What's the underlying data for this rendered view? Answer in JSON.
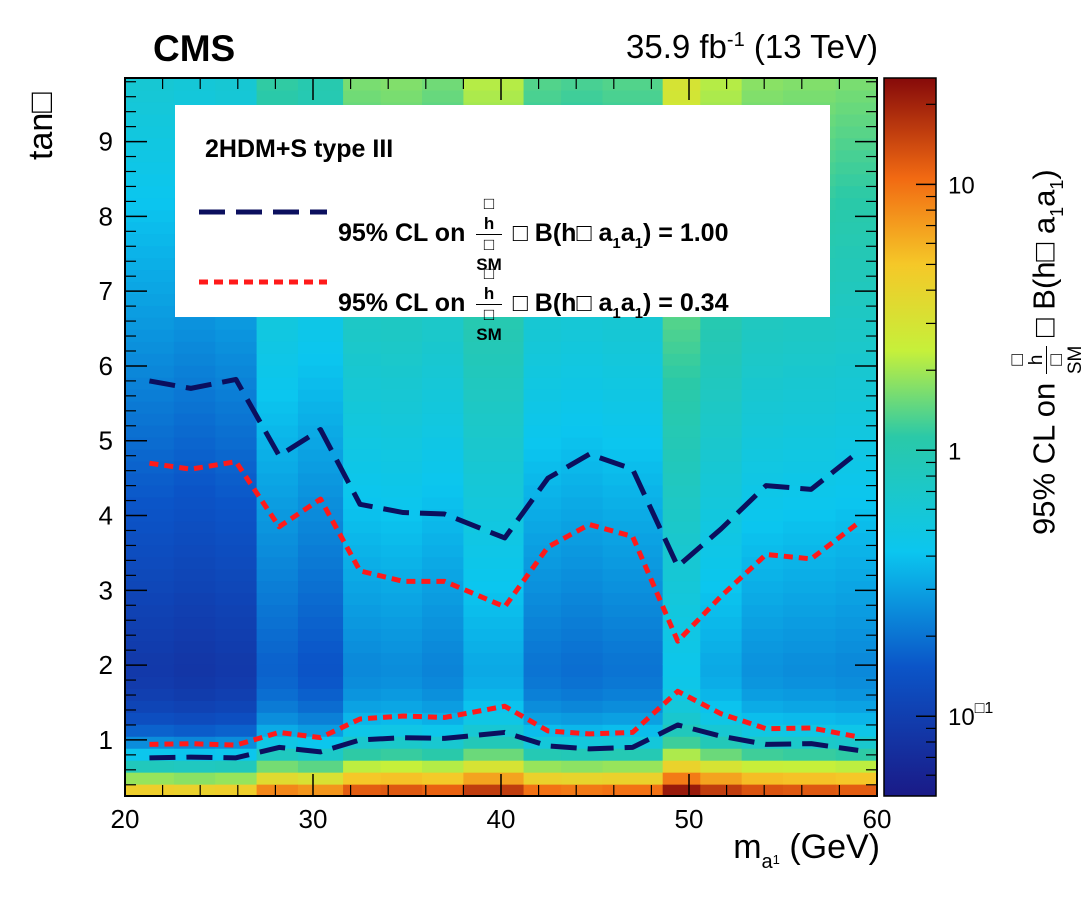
{
  "header": {
    "experiment": "CMS",
    "luminosity_value": "35.9 fb",
    "luminosity_exp": "-1",
    "energy": "(13 TeV)"
  },
  "legend": {
    "title": "2HDM+S type III",
    "entries": [
      {
        "prefix": "95% CL on",
        "frac_num": "□",
        "frac_num_sub": "h",
        "frac_den": "□",
        "frac_den_sub": "SM",
        "mid": "□ B(h□",
        "a": "a",
        "sub1": "1",
        "a2": "a",
        "sub2": "1",
        "suffix": ") = 1.00",
        "color": "#0b0f5e",
        "style": "dashed"
      },
      {
        "prefix": "95% CL on",
        "frac_num": "□",
        "frac_num_sub": "h",
        "frac_den": "□",
        "frac_den_sub": "SM",
        "mid": "□ B(h□",
        "a": "a",
        "sub1": "1",
        "a2": "a",
        "sub2": "1",
        "suffix": ") = 0.34",
        "color": "#ff1a1a",
        "style": "dotted"
      }
    ]
  },
  "axes": {
    "ylabel": "tan□",
    "xlabel_main": "m",
    "xlabel_sub": "a",
    "xlabel_subsub": "1",
    "xlabel_unit": " (GeV)",
    "zlabel_prefix": "95% CL on",
    "zlabel_num": "□",
    "zlabel_num_sub": "h",
    "zlabel_den": "□",
    "zlabel_den_sub": "SM",
    "zlabel_mid": " □ B(h□  a",
    "zlabel_sub1": "1",
    "zlabel_a2": "a",
    "zlabel_sub2": "1",
    "zlabel_suffix": ")"
  },
  "chart_data": {
    "type": "heatmap",
    "xlim": [
      20,
      60
    ],
    "ylim": [
      0.25,
      9.85
    ],
    "zlim_log10": [
      -1.3,
      1.4
    ],
    "x_ticks": [
      20,
      30,
      40,
      50,
      60
    ],
    "x_tick_labels": [
      "20",
      "30",
      "40",
      "50",
      "60"
    ],
    "y_ticks": [
      1,
      2,
      3,
      4,
      5,
      6,
      7,
      8,
      9
    ],
    "y_tick_labels": [
      "1",
      "2",
      "3",
      "4",
      "5",
      "6",
      "7",
      "8",
      "9"
    ],
    "z_tick_labels": [
      {
        "value": 0.1,
        "label": "10",
        "exp": "□1"
      },
      {
        "value": 1,
        "label": "1",
        "exp": ""
      },
      {
        "value": 10,
        "label": "10",
        "exp": ""
      }
    ],
    "columns": [
      {
        "x0": 20,
        "x1": 22.6,
        "min": 0.09
      },
      {
        "x0": 22.6,
        "x1": 24.8,
        "min": 0.085
      },
      {
        "x0": 24.8,
        "x1": 27.0,
        "min": 0.09
      },
      {
        "x0": 27.0,
        "x1": 29.2,
        "min": 0.17
      },
      {
        "x0": 29.2,
        "x1": 31.6,
        "min": 0.15
      },
      {
        "x0": 31.6,
        "x1": 33.6,
        "min": 0.24
      },
      {
        "x0": 33.6,
        "x1": 35.8,
        "min": 0.25
      },
      {
        "x0": 35.8,
        "x1": 38.0,
        "min": 0.23
      },
      {
        "x0": 38.0,
        "x1": 41.2,
        "min": 0.32
      },
      {
        "x0": 41.2,
        "x1": 43.2,
        "min": 0.2
      },
      {
        "x0": 43.2,
        "x1": 45.4,
        "min": 0.19
      },
      {
        "x0": 45.4,
        "x1": 48.6,
        "min": 0.2
      },
      {
        "x0": 48.6,
        "x1": 50.6,
        "min": 0.44
      },
      {
        "x0": 50.6,
        "x1": 52.8,
        "min": 0.32
      },
      {
        "x0": 52.8,
        "x1": 55.0,
        "min": 0.26
      },
      {
        "x0": 55.0,
        "x1": 57.8,
        "min": 0.25
      },
      {
        "x0": 57.8,
        "x1": 60,
        "min": 0.24
      }
    ],
    "series": [
      {
        "name": "95% CL on σh/σSM × B(h→a1a1) = 1.00",
        "color": "#0b0f5e",
        "style": "dashed",
        "upper": {
          "x": [
            21.3,
            23.5,
            25.9,
            28.2,
            30.4,
            32.5,
            34.8,
            37.0,
            40.2,
            42.5,
            44.7,
            47.0,
            49.4,
            51.7,
            54.1,
            56.5,
            59.0
          ],
          "y": [
            5.8,
            5.7,
            5.82,
            4.8,
            5.15,
            4.15,
            4.04,
            4.02,
            3.7,
            4.5,
            4.82,
            4.62,
            3.32,
            3.82,
            4.4,
            4.35,
            4.85
          ]
        },
        "lower": {
          "x": [
            21.3,
            23.5,
            25.9,
            28.2,
            30.4,
            32.5,
            34.8,
            37.0,
            40.2,
            42.5,
            44.7,
            47.0,
            49.4,
            51.7,
            54.1,
            56.5,
            59.0
          ],
          "y": [
            0.76,
            0.77,
            0.76,
            0.9,
            0.84,
            1.0,
            1.03,
            1.02,
            1.1,
            0.92,
            0.88,
            0.9,
            1.2,
            1.05,
            0.94,
            0.95,
            0.86
          ]
        }
      },
      {
        "name": "95% CL on σh/σSM × B(h→a1a1) = 0.34",
        "color": "#ff1a1a",
        "style": "dotted",
        "upper": {
          "x": [
            21.3,
            23.5,
            25.9,
            28.2,
            30.4,
            32.5,
            34.8,
            37.0,
            40.2,
            42.5,
            44.7,
            47.0,
            49.4,
            51.7,
            54.1,
            56.5,
            59.0
          ],
          "y": [
            4.7,
            4.62,
            4.72,
            3.85,
            4.22,
            3.26,
            3.12,
            3.12,
            2.78,
            3.58,
            3.88,
            3.72,
            2.32,
            2.92,
            3.48,
            3.42,
            3.9
          ]
        },
        "lower": {
          "x": [
            21.3,
            23.5,
            25.9,
            28.2,
            30.4,
            32.5,
            34.8,
            37.0,
            40.2,
            42.5,
            44.7,
            47.0,
            49.4,
            51.7,
            54.1,
            56.5,
            59.0
          ],
          "y": [
            0.94,
            0.95,
            0.93,
            1.1,
            1.03,
            1.28,
            1.32,
            1.3,
            1.45,
            1.12,
            1.08,
            1.1,
            1.65,
            1.35,
            1.15,
            1.16,
            1.04
          ]
        }
      }
    ]
  }
}
